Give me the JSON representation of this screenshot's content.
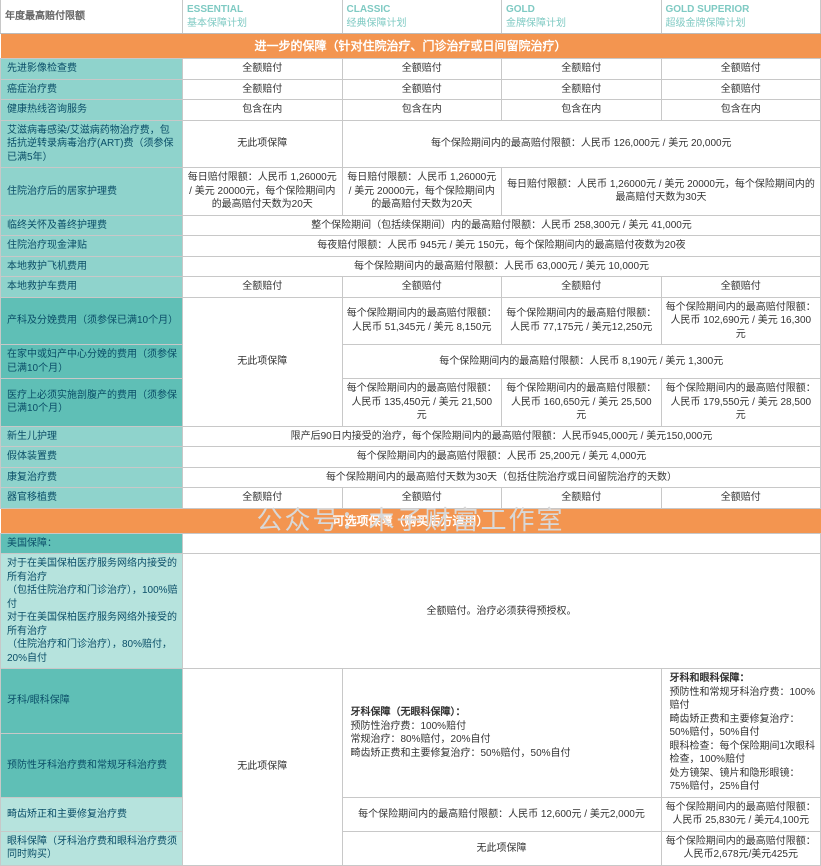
{
  "watermark": "公众号：木子财富工作室",
  "header": {
    "title": "年度最高赔付限额",
    "plans": [
      {
        "en": "ESSENTIAL",
        "zh": "基本保障计划"
      },
      {
        "en": "CLASSIC",
        "zh": "经典保障计划"
      },
      {
        "en": "GOLD",
        "zh": "金牌保障计划"
      },
      {
        "en": "GOLD SUPERIOR",
        "zh": "超级金牌保障计划"
      }
    ]
  },
  "sections": [
    {
      "title": "进一步的保障（针对住院治疗、门诊治疗或日间留院治疗）",
      "rows": [
        {
          "label": "先进影像检查费",
          "cells": [
            {
              "t": "全额赔付"
            },
            {
              "t": "全额赔付"
            },
            {
              "t": "全额赔付"
            },
            {
              "t": "全额赔付"
            }
          ]
        },
        {
          "label": "癌症治疗费",
          "cells": [
            {
              "t": "全额赔付"
            },
            {
              "t": "全额赔付"
            },
            {
              "t": "全额赔付"
            },
            {
              "t": "全额赔付"
            }
          ]
        },
        {
          "label": "健康热线咨询服务",
          "cells": [
            {
              "t": "包含在内"
            },
            {
              "t": "包含在内"
            },
            {
              "t": "包含在内"
            },
            {
              "t": "包含在内"
            }
          ]
        },
        {
          "label": "艾滋病毒感染/艾滋病药物治疗费，包括抗逆转录病毒治疗(ART)费（须参保已满5年）",
          "cells": [
            {
              "t": "无此项保障"
            },
            {
              "t": "每个保险期间内的最高赔付限额：人民币 126,000元 / 美元 20,000元",
              "span": 3
            }
          ]
        },
        {
          "label": "住院治疗后的居家护理费",
          "cells": [
            {
              "t": "每日赔付限额：人民币 1,26000元 / 美元 20000元，每个保险期间内的最高赔付天数为20天"
            },
            {
              "t": "每日赔付限额：人民币 1,26000元 / 美元 20000元，每个保险期间内的最高赔付天数为20天"
            },
            {
              "t": "每日赔付限额：人民币 1,26000元 / 美元 20000元，每个保险期间内的最高赔付天数为30天",
              "span": 2
            }
          ]
        },
        {
          "label": "临终关怀及善终护理费",
          "cells": [
            {
              "t": "整个保险期间（包括续保期间）内的最高赔付限额：人民币 258,300元 / 美元 41,000元",
              "span": 4
            }
          ]
        },
        {
          "label": "住院治疗现金津贴",
          "cells": [
            {
              "t": "每夜赔付限额：人民币 945元 / 美元 150元，每个保险期间内的最高赔付夜数为20夜",
              "span": 4
            }
          ]
        },
        {
          "label": "本地救护飞机费用",
          "cells": [
            {
              "t": "每个保险期间内的最高赔付限额：人民币 63,000元 / 美元 10,000元",
              "span": 4
            }
          ]
        },
        {
          "label": "本地救护车费用",
          "cells": [
            {
              "t": "全额赔付"
            },
            {
              "t": "全额赔付"
            },
            {
              "t": "全额赔付"
            },
            {
              "t": "全额赔付"
            }
          ]
        },
        {
          "label": "产科及分娩费用（须参保已满10个月）",
          "labelClass": "deep",
          "cells": [
            {
              "t": "无此项保障",
              "rspan": 3
            },
            {
              "t": "每个保险期间内的最高赔付限额：\n人民币 51,345元 / 美元 8,150元"
            },
            {
              "t": "每个保险期间内的最高赔付限额：\n人民币 77,175元 / 美元12,250元"
            },
            {
              "t": "每个保险期间内的最高赔付限额：\n人民币 102,690元 / 美元 16,300元"
            }
          ]
        },
        {
          "label": "在家中或妇产中心分娩的费用（须参保已满10个月）",
          "labelClass": "deep",
          "noFirst": true,
          "cells": [
            {
              "t": "每个保险期间内的最高赔付限额：人民币 8,190元 / 美元 1,300元",
              "span": 3
            }
          ]
        },
        {
          "label": "医疗上必须实施剖腹产的费用（须参保已满10个月）",
          "labelClass": "deep",
          "noFirst": true,
          "cells": [
            {
              "t": "每个保险期间内的最高赔付限额：\n人民币 135,450元 / 美元 21,500元"
            },
            {
              "t": "每个保险期间内的最高赔付限额：\n人民币 160,650元 / 美元 25,500元"
            },
            {
              "t": "每个保险期间内的最高赔付限额：\n人民币 179,550元 / 美元 28,500元"
            }
          ]
        },
        {
          "label": "新生儿护理",
          "cells": [
            {
              "t": "限产后90日内接受的治疗，每个保险期间内的最高赔付限额：人民币945,000元 / 美元150,000元",
              "span": 4
            }
          ]
        },
        {
          "label": "假体装置费",
          "cells": [
            {
              "t": "每个保险期间内的最高赔付限额：人民币 25,200元 / 美元 4,000元",
              "span": 4
            }
          ]
        },
        {
          "label": "康复治疗费",
          "cells": [
            {
              "t": "每个保险期间内的最高赔付天数为30天（包括住院治疗或日间留院治疗的天数）",
              "span": 4
            }
          ]
        },
        {
          "label": "器官移植费",
          "cells": [
            {
              "t": "全额赔付"
            },
            {
              "t": "全额赔付"
            },
            {
              "t": "全额赔付"
            },
            {
              "t": "全额赔付"
            }
          ]
        }
      ]
    },
    {
      "title": "可选项保障（购买后方适用）",
      "rows": [
        {
          "label": "美国保障：",
          "labelClass": "deep",
          "labelOnly": true
        },
        {
          "label": "对于在美国保柏医疗服务网络内接受的所有治疗\n（包括住院治疗和门诊治疗），100%赔付\n对于在美国保柏医疗服务网络外接受的所有治疗\n（住院治疗和门诊治疗），80%赔付，20%自付",
          "labelClass": "alt",
          "cells": [
            {
              "t": "全额赔付。治疗必须获得预授权。",
              "span": 4
            }
          ]
        },
        {
          "label": "牙科/眼科保障",
          "labelClass": "deep",
          "cells": [
            {
              "t": "无此项保障",
              "rspan": 4
            },
            {
              "t": "牙科保障（无眼科保障）：\n预防性治疗费：100%赔付\n常规治疗：80%赔付，20%自付\n畸齿矫正费和主要修复治疗：50%赔付，50%自付",
              "span": 2,
              "align": "left",
              "bold": true,
              "rspan": 2
            },
            {
              "t": "牙科和眼科保障：\n预防性和常规牙科治疗费：100%赔付\n畸齿矫正费和主要修复治疗：50%赔付，50%自付\n眼科检查：每个保险期间1次眼科检查，100%赔付\n处方镜架、镜片和隐形眼镜：75%赔付，25%自付",
              "align": "left",
              "bold": true,
              "rspan": 2
            }
          ]
        },
        {
          "label": "预防性牙科治疗费和常规牙科治疗费",
          "labelClass": "deep",
          "noFirst": true,
          "cells": []
        },
        {
          "label": "畸齿矫正和主要修复治疗费",
          "labelClass": "alt",
          "noFirst": true,
          "cells": [
            {
              "t": "每个保险期间内的最高赔付限额：人民币 12,600元 / 美元2,000元",
              "span": 2
            },
            {
              "t": "每个保险期间内的最高赔付限额：\n人民币 25,830元 / 美元4,100元"
            }
          ]
        },
        {
          "label": "眼科保障（牙科治疗费和眼科治疗费须同时购买）",
          "labelClass": "alt",
          "noFirst": true,
          "cells": [
            {
              "t": "无此项保障",
              "span": 2
            },
            {
              "t": "每个保险期间内的最高赔付限额：\n人民币2,678元/美元425元"
            }
          ]
        }
      ]
    }
  ]
}
